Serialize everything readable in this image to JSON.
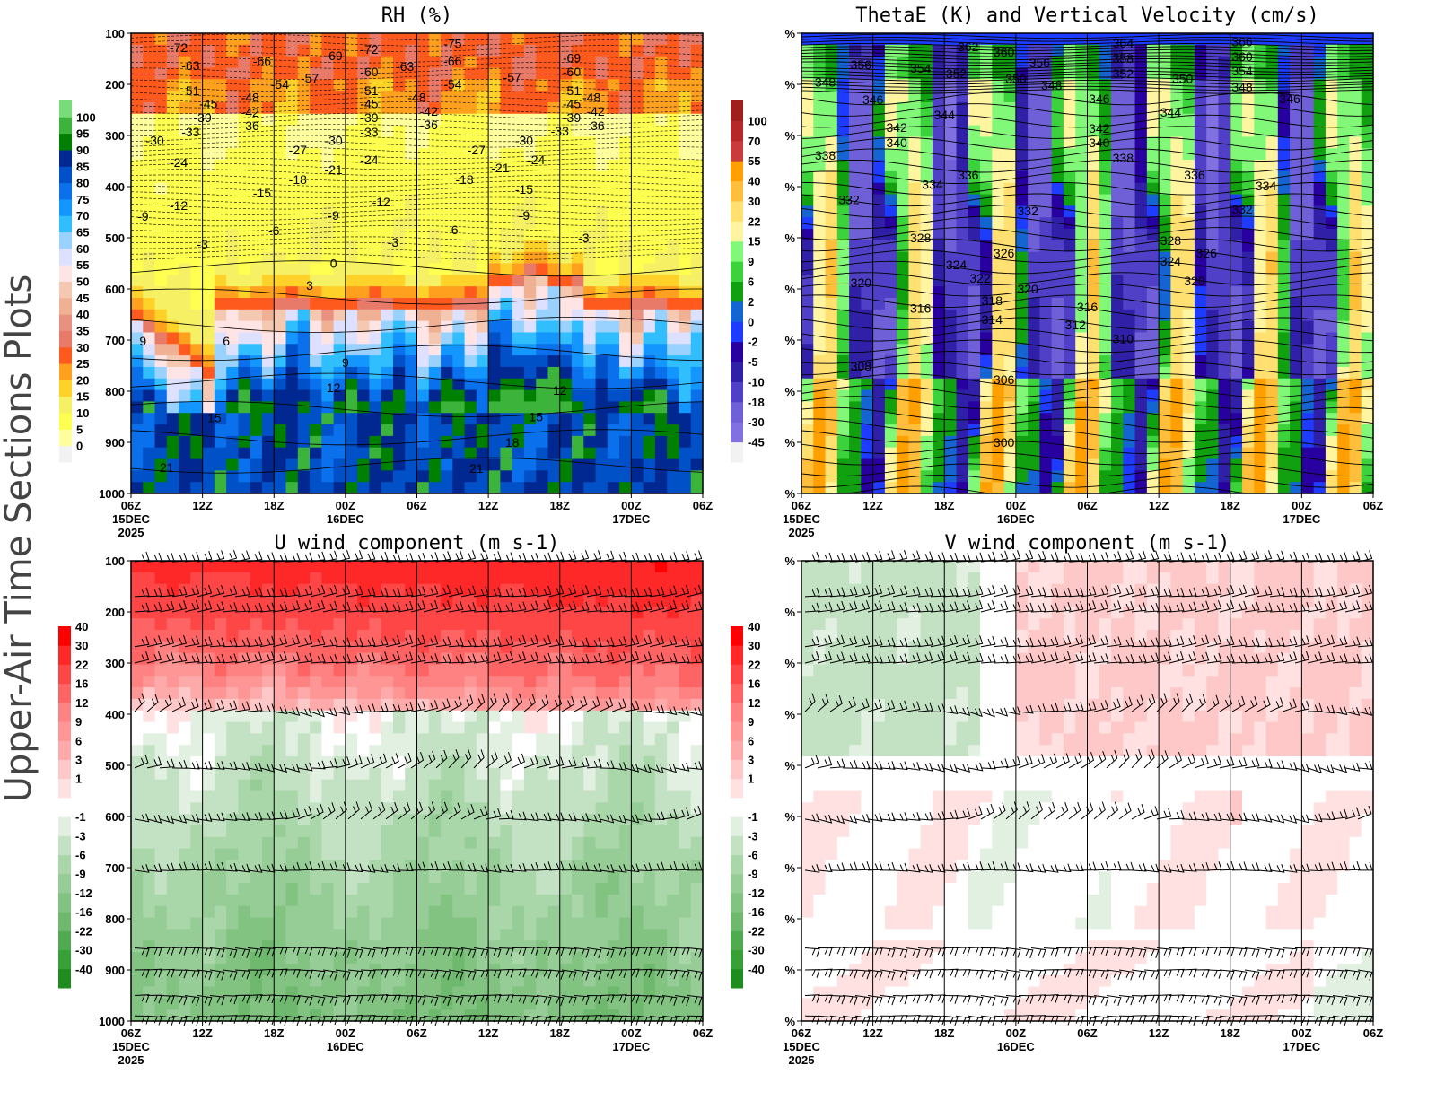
{
  "side_title": "Upper-Air Time Sections Plots",
  "chart_data": [
    {
      "type": "heatmap",
      "title": "RH (%)",
      "xlim": [
        "2025-12-15T06:00",
        "2025-12-17T06:00"
      ],
      "ylim": [
        1000,
        100
      ],
      "y_scale": "linear pressure (hPa), inverted",
      "yticks": [
        100,
        200,
        300,
        400,
        500,
        600,
        700,
        800,
        900,
        1000
      ],
      "ytick_labels": [
        "100",
        "200",
        "300",
        "400",
        "500",
        "600",
        "700",
        "800",
        "900",
        "1000"
      ],
      "xtick_labels": [
        "06Z",
        "12Z",
        "18Z",
        "00Z",
        "06Z",
        "12Z",
        "18Z",
        "00Z",
        "06Z"
      ],
      "xtick_dates": [
        "15DEC",
        "",
        "",
        "16DEC",
        "",
        "",
        "",
        "17DEC",
        ""
      ],
      "xtick_years": [
        "2025",
        "",
        "",
        "",
        "",
        "",
        "",
        "",
        ""
      ],
      "grid": "vertical lines at each x tick",
      "colorbar": {
        "labels": [
          "0",
          "5",
          "10",
          "15",
          "20",
          "25",
          "30",
          "35",
          "40",
          "45",
          "50",
          "55",
          "60",
          "65",
          "70",
          "75",
          "80",
          "85",
          "90",
          "95",
          "100"
        ],
        "colors": [
          "#f2f2f2",
          "#ffff9e",
          "#ffff50",
          "#f5f064",
          "#ffd22a",
          "#ffa01e",
          "#ff5a1e",
          "#e87a6a",
          "#ea9080",
          "#f0b094",
          "#f5c8b2",
          "#ffe4e6",
          "#dde0ff",
          "#9ad2ff",
          "#30beff",
          "#1496ff",
          "#0a70eb",
          "#0050c8",
          "#002890",
          "#008000",
          "#3cb43c",
          "#78dc78"
        ]
      },
      "overlay": "temperature contours (dashed negative, solid positive)",
      "contour_labels": [
        {
          "t": "2025-12-15T10:00",
          "p": 128,
          "text": "-72"
        },
        {
          "t": "2025-12-15T11:00",
          "p": 163,
          "text": "-63"
        },
        {
          "t": "2025-12-15T17:00",
          "p": 154,
          "text": "-66"
        },
        {
          "t": "2025-12-15T23:00",
          "p": 144,
          "text": "-69"
        },
        {
          "t": "2025-12-16T02:00",
          "p": 132,
          "text": "-72"
        },
        {
          "t": "2025-12-16T09:00",
          "p": 120,
          "text": "-75"
        },
        {
          "t": "2025-12-16T09:00",
          "p": 154,
          "text": "-66"
        },
        {
          "t": "2025-12-16T05:00",
          "p": 165,
          "text": "-63"
        },
        {
          "t": "2025-12-16T02:00",
          "p": 175,
          "text": "-60"
        },
        {
          "t": "2025-12-15T21:00",
          "p": 188,
          "text": "-57"
        },
        {
          "t": "2025-12-15T18:30",
          "p": 200,
          "text": "-54"
        },
        {
          "t": "2025-12-16T09:00",
          "p": 200,
          "text": "-54"
        },
        {
          "t": "2025-12-16T14:00",
          "p": 186,
          "text": "-57"
        },
        {
          "t": "2025-12-16T19:00",
          "p": 148,
          "text": "-69"
        },
        {
          "t": "2025-12-16T19:00",
          "p": 175,
          "text": "-60"
        },
        {
          "t": "2025-12-16T19:00",
          "p": 212,
          "text": "-51"
        },
        {
          "t": "2025-12-15T11:00",
          "p": 212,
          "text": "-51"
        },
        {
          "t": "2025-12-16T02:00",
          "p": 212,
          "text": "-51"
        },
        {
          "t": "2025-12-16T06:00",
          "p": 225,
          "text": "-48"
        },
        {
          "t": "2025-12-16T20:40",
          "p": 225,
          "text": "-48"
        },
        {
          "t": "2025-12-15T12:30",
          "p": 238,
          "text": "-45"
        },
        {
          "t": "2025-12-15T16:00",
          "p": 225,
          "text": "-48"
        },
        {
          "t": "2025-12-16T02:00",
          "p": 238,
          "text": "-45"
        },
        {
          "t": "2025-12-16T19:00",
          "p": 238,
          "text": "-45"
        },
        {
          "t": "2025-12-15T16:00",
          "p": 254,
          "text": "-42"
        },
        {
          "t": "2025-12-16T07:00",
          "p": 253,
          "text": "-42"
        },
        {
          "t": "2025-12-16T21:00",
          "p": 253,
          "text": "-42"
        },
        {
          "t": "2025-12-15T12:00",
          "p": 265,
          "text": "-39"
        },
        {
          "t": "2025-12-16T02:00",
          "p": 265,
          "text": "-39"
        },
        {
          "t": "2025-12-16T19:00",
          "p": 265,
          "text": "-39"
        },
        {
          "t": "2025-12-15T16:00",
          "p": 281,
          "text": "-36"
        },
        {
          "t": "2025-12-16T07:00",
          "p": 279,
          "text": "-36"
        },
        {
          "t": "2025-12-16T21:00",
          "p": 281,
          "text": "-36"
        },
        {
          "t": "2025-12-15T11:00",
          "p": 293,
          "text": "-33"
        },
        {
          "t": "2025-12-16T02:00",
          "p": 293,
          "text": "-33"
        },
        {
          "t": "2025-12-16T18:00",
          "p": 291,
          "text": "-33"
        },
        {
          "t": "2025-12-15T08:00",
          "p": 310,
          "text": "-30"
        },
        {
          "t": "2025-12-15T23:00",
          "p": 310,
          "text": "-30"
        },
        {
          "t": "2025-12-16T15:00",
          "p": 310,
          "text": "-30"
        },
        {
          "t": "2025-12-15T20:00",
          "p": 328,
          "text": "-27"
        },
        {
          "t": "2025-12-16T11:00",
          "p": 328,
          "text": "-27"
        },
        {
          "t": "2025-12-15T10:00",
          "p": 353,
          "text": "-24"
        },
        {
          "t": "2025-12-16T02:00",
          "p": 347,
          "text": "-24"
        },
        {
          "t": "2025-12-16T16:00",
          "p": 347,
          "text": "-24"
        },
        {
          "t": "2025-12-15T23:00",
          "p": 367,
          "text": "-21"
        },
        {
          "t": "2025-12-16T13:00",
          "p": 363,
          "text": "-21"
        },
        {
          "t": "2025-12-15T20:00",
          "p": 386,
          "text": "-18"
        },
        {
          "t": "2025-12-16T10:00",
          "p": 386,
          "text": "-18"
        },
        {
          "t": "2025-12-15T17:00",
          "p": 412,
          "text": "-15"
        },
        {
          "t": "2025-12-16T15:00",
          "p": 405,
          "text": "-15"
        },
        {
          "t": "2025-12-15T10:00",
          "p": 437,
          "text": "-12"
        },
        {
          "t": "2025-12-16T03:00",
          "p": 430,
          "text": "-12"
        },
        {
          "t": "2025-12-15T07:00",
          "p": 458,
          "text": "-9"
        },
        {
          "t": "2025-12-15T23:00",
          "p": 456,
          "text": "-9"
        },
        {
          "t": "2025-12-16T15:00",
          "p": 456,
          "text": "-9"
        },
        {
          "t": "2025-12-15T18:00",
          "p": 486,
          "text": "-6"
        },
        {
          "t": "2025-12-16T09:00",
          "p": 484,
          "text": "-6"
        },
        {
          "t": "2025-12-15T12:00",
          "p": 512,
          "text": "-3"
        },
        {
          "t": "2025-12-16T04:00",
          "p": 509,
          "text": "-3"
        },
        {
          "t": "2025-12-16T20:00",
          "p": 500,
          "text": "-3"
        },
        {
          "t": "2025-12-15T23:00",
          "p": 550,
          "text": "0"
        },
        {
          "t": "2025-12-15T21:00",
          "p": 593,
          "text": "3"
        },
        {
          "t": "2025-12-15T14:00",
          "p": 702,
          "text": "6"
        },
        {
          "t": "2025-12-15T07:00",
          "p": 702,
          "text": "9"
        },
        {
          "t": "2025-12-16T00:00",
          "p": 744,
          "text": "9"
        },
        {
          "t": "2025-12-15T23:00",
          "p": 793,
          "text": "12"
        },
        {
          "t": "2025-12-16T18:00",
          "p": 798,
          "text": "12"
        },
        {
          "t": "2025-12-15T13:00",
          "p": 852,
          "text": "15"
        },
        {
          "t": "2025-12-16T16:00",
          "p": 850,
          "text": "15"
        },
        {
          "t": "2025-12-16T14:00",
          "p": 900,
          "text": "18"
        },
        {
          "t": "2025-12-15T09:00",
          "p": 949,
          "text": "21"
        },
        {
          "t": "2025-12-16T11:00",
          "p": 951,
          "text": "21"
        }
      ]
    },
    {
      "type": "heatmap",
      "title": "ThetaE (K) and Vertical Velocity (cm/s)",
      "xlim": [
        "2025-12-15T06:00",
        "2025-12-17T06:00"
      ],
      "ylim": [
        1000,
        100
      ],
      "ytick_labels": [
        "%",
        "%",
        "%",
        "%",
        "%",
        "%",
        "%",
        "%",
        "%",
        "%"
      ],
      "xtick_labels": [
        "06Z",
        "12Z",
        "18Z",
        "00Z",
        "06Z",
        "12Z",
        "18Z",
        "00Z",
        "06Z"
      ],
      "xtick_dates": [
        "15DEC",
        "",
        "",
        "16DEC",
        "",
        "",
        "",
        "17DEC",
        ""
      ],
      "xtick_years": [
        "2025",
        "",
        "",
        "",
        "",
        "",
        "",
        "",
        ""
      ],
      "grid": "vertical lines at each x tick",
      "colorbar": {
        "labels": [
          "-45",
          "-30",
          "-18",
          "-10",
          "-5",
          "-2",
          "0",
          "2",
          "6",
          "9",
          "15",
          "22",
          "30",
          "40",
          "55",
          "70",
          "100"
        ],
        "colors": [
          "#f2f2f2",
          "#8070e0",
          "#7060d8",
          "#5040c8",
          "#3020a8",
          "#2800a0",
          "#1e3cff",
          "#1464d2",
          "#10a010",
          "#3cd23c",
          "#82f878",
          "#fff5a0",
          "#ffe070",
          "#ffbe3c",
          "#ffa000",
          "#c83c3c",
          "#b42828",
          "#a01e1e"
        ]
      },
      "overlay": "theta-e contours (K)",
      "contour_labels": [
        {
          "t": "2025-12-15T20:00",
          "p": 126,
          "text": "362"
        },
        {
          "t": "2025-12-15T23:00",
          "p": 137,
          "text": "360"
        },
        {
          "t": "2025-12-15T11:00",
          "p": 161,
          "text": "356"
        },
        {
          "t": "2025-12-15T16:00",
          "p": 168,
          "text": "354"
        },
        {
          "t": "2025-12-15T19:00",
          "p": 179,
          "text": "352"
        },
        {
          "t": "2025-12-16T02:00",
          "p": 158,
          "text": "356"
        },
        {
          "t": "2025-12-16T00:00",
          "p": 189,
          "text": "350"
        },
        {
          "t": "2025-12-16T03:00",
          "p": 202,
          "text": "348"
        },
        {
          "t": "2025-12-15T08:00",
          "p": 196,
          "text": "348"
        },
        {
          "t": "2025-12-15T12:00",
          "p": 230,
          "text": "346"
        },
        {
          "t": "2025-12-16T09:00",
          "p": 119,
          "text": "364"
        },
        {
          "t": "2025-12-16T09:00",
          "p": 149,
          "text": "358"
        },
        {
          "t": "2025-12-16T09:00",
          "p": 179,
          "text": "352"
        },
        {
          "t": "2025-12-16T19:00",
          "p": 117,
          "text": "366"
        },
        {
          "t": "2025-12-16T19:00",
          "p": 146,
          "text": "360"
        },
        {
          "t": "2025-12-16T19:00",
          "p": 174,
          "text": "354"
        },
        {
          "t": "2025-12-16T19:00",
          "p": 205,
          "text": "348"
        },
        {
          "t": "2025-12-16T14:00",
          "p": 189,
          "text": "350"
        },
        {
          "t": "2025-12-16T07:00",
          "p": 228,
          "text": "346"
        },
        {
          "t": "2025-12-16T23:00",
          "p": 228,
          "text": "346"
        },
        {
          "t": "2025-12-15T18:00",
          "p": 260,
          "text": "344"
        },
        {
          "t": "2025-12-16T13:00",
          "p": 254,
          "text": "344"
        },
        {
          "t": "2025-12-15T14:00",
          "p": 284,
          "text": "342"
        },
        {
          "t": "2025-12-15T14:00",
          "p": 314,
          "text": "340"
        },
        {
          "t": "2025-12-16T07:00",
          "p": 286,
          "text": "342"
        },
        {
          "t": "2025-12-16T07:00",
          "p": 314,
          "text": "340"
        },
        {
          "t": "2025-12-15T08:00",
          "p": 339,
          "text": "338"
        },
        {
          "t": "2025-12-16T09:00",
          "p": 344,
          "text": "338"
        },
        {
          "t": "2025-12-15T20:00",
          "p": 377,
          "text": "336"
        },
        {
          "t": "2025-12-16T15:00",
          "p": 377,
          "text": "336"
        },
        {
          "t": "2025-12-15T17:00",
          "p": 396,
          "text": "334"
        },
        {
          "t": "2025-12-16T21:00",
          "p": 398,
          "text": "334"
        },
        {
          "t": "2025-12-15T10:00",
          "p": 425,
          "text": "332"
        },
        {
          "t": "2025-12-16T01:00",
          "p": 447,
          "text": "332"
        },
        {
          "t": "2025-12-16T19:00",
          "p": 444,
          "text": "332"
        },
        {
          "t": "2025-12-15T16:00",
          "p": 500,
          "text": "328"
        },
        {
          "t": "2025-12-16T13:00",
          "p": 505,
          "text": "328"
        },
        {
          "t": "2025-12-15T23:00",
          "p": 530,
          "text": "326"
        },
        {
          "t": "2025-12-16T16:00",
          "p": 530,
          "text": "326"
        },
        {
          "t": "2025-12-15T19:00",
          "p": 553,
          "text": "324"
        },
        {
          "t": "2025-12-16T13:00",
          "p": 546,
          "text": "324"
        },
        {
          "t": "2025-12-15T21:00",
          "p": 579,
          "text": "322"
        },
        {
          "t": "2025-12-15T11:00",
          "p": 588,
          "text": "320"
        },
        {
          "t": "2025-12-16T01:00",
          "p": 600,
          "text": "320"
        },
        {
          "t": "2025-12-16T15:00",
          "p": 584,
          "text": "320"
        },
        {
          "t": "2025-12-15T22:00",
          "p": 623,
          "text": "318"
        },
        {
          "t": "2025-12-15T16:00",
          "p": 638,
          "text": "316"
        },
        {
          "t": "2025-12-16T06:00",
          "p": 635,
          "text": "316"
        },
        {
          "t": "2025-12-15T22:00",
          "p": 660,
          "text": "314"
        },
        {
          "t": "2025-12-16T05:00",
          "p": 670,
          "text": "312"
        },
        {
          "t": "2025-12-16T09:00",
          "p": 697,
          "text": "310"
        },
        {
          "t": "2025-12-15T11:00",
          "p": 751,
          "text": "308"
        },
        {
          "t": "2025-12-15T23:00",
          "p": 777,
          "text": "306"
        },
        {
          "t": "2025-12-15T23:00",
          "p": 900,
          "text": "300"
        }
      ]
    },
    {
      "type": "heatmap",
      "title": "U wind component (m s-1)",
      "xlim": [
        "2025-12-15T06:00",
        "2025-12-17T06:00"
      ],
      "ylim": [
        1000,
        100
      ],
      "ytick_labels": [
        "100",
        "200",
        "300",
        "400",
        "500",
        "600",
        "700",
        "800",
        "900",
        "1000"
      ],
      "xtick_labels": [
        "06Z",
        "12Z",
        "18Z",
        "00Z",
        "06Z",
        "12Z",
        "18Z",
        "00Z",
        "06Z"
      ],
      "xtick_dates": [
        "15DEC",
        "",
        "",
        "16DEC",
        "",
        "",
        "",
        "17DEC",
        ""
      ],
      "xtick_years": [
        "2025",
        "",
        "",
        "",
        "",
        "",
        "",
        "",
        ""
      ],
      "grid": "vertical lines at each x tick",
      "overlay": "wind barbs",
      "colorbar": {
        "labels": [
          "-40",
          "-30",
          "-22",
          "-16",
          "-12",
          "-9",
          "-6",
          "-3",
          "-1",
          "",
          "1",
          "3",
          "6",
          "9",
          "12",
          "16",
          "22",
          "30",
          "40"
        ],
        "colors": [
          "#1e8c1e",
          "#37a037",
          "#50aa50",
          "#6eb96e",
          "#82c382",
          "#96cd96",
          "#aad7aa",
          "#c3e1c3",
          "#e1f0e1",
          "#ffffff",
          "#ffe1e1",
          "#ffc8c8",
          "#ffaaaa",
          "#ff9696",
          "#ff8282",
          "#ff6464",
          "#ff4646",
          "#ff2828",
          "#ff0000"
        ]
      }
    },
    {
      "type": "heatmap",
      "title": "V wind component (m s-1)",
      "xlim": [
        "2025-12-15T06:00",
        "2025-12-17T06:00"
      ],
      "ylim": [
        1000,
        100
      ],
      "ytick_labels": [
        "%",
        "%",
        "%",
        "%",
        "%",
        "%",
        "%",
        "%",
        "%",
        "%"
      ],
      "xtick_labels": [
        "06Z",
        "12Z",
        "18Z",
        "00Z",
        "06Z",
        "12Z",
        "18Z",
        "00Z",
        "06Z"
      ],
      "xtick_dates": [
        "15DEC",
        "",
        "",
        "16DEC",
        "",
        "",
        "",
        "17DEC",
        ""
      ],
      "xtick_years": [
        "2025",
        "",
        "",
        "",
        "",
        "",
        "",
        "",
        ""
      ],
      "grid": "vertical lines at each x tick",
      "overlay": "wind barbs",
      "colorbar": {
        "labels": [
          "-40",
          "-30",
          "-22",
          "-16",
          "-12",
          "-9",
          "-6",
          "-3",
          "-1",
          "",
          "1",
          "3",
          "6",
          "9",
          "12",
          "16",
          "22",
          "30",
          "40"
        ],
        "colors": [
          "#1e8c1e",
          "#37a037",
          "#50aa50",
          "#6eb96e",
          "#82c382",
          "#96cd96",
          "#aad7aa",
          "#c3e1c3",
          "#e1f0e1",
          "#ffffff",
          "#ffe1e1",
          "#ffc8c8",
          "#ffaaaa",
          "#ff9696",
          "#ff8282",
          "#ff6464",
          "#ff4646",
          "#ff2828",
          "#ff0000"
        ]
      }
    }
  ]
}
